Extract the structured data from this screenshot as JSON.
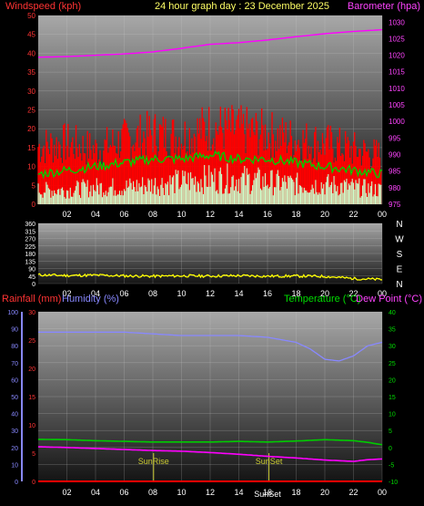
{
  "title": "24 hour graph day : 23 December 2025",
  "colors": {
    "wind": "#ff0000",
    "gust_avg": "#00cc00",
    "wind_light": "#ccffcc",
    "barometer": "#ff00ff",
    "direction": "#ffff00",
    "rain": "#ff0000",
    "humidity": "#8888ff",
    "temperature": "#00cc00",
    "dewpoint": "#ff00ff",
    "sun_marker": "#cccc33"
  },
  "time_ticks": [
    "02",
    "04",
    "06",
    "08",
    "10",
    "12",
    "14",
    "16",
    "18",
    "20",
    "22",
    "00"
  ],
  "chart_data": [
    {
      "type": "line",
      "left_axis_label": "Windspeed (kph)",
      "right_axis_label": "Barometer (hpa)",
      "left_ticks": [
        "0",
        "5",
        "10",
        "15",
        "20",
        "25",
        "30",
        "35",
        "40",
        "45",
        "50"
      ],
      "right_ticks": [
        "975",
        "980",
        "985",
        "990",
        "995",
        "1000",
        "1005",
        "1010",
        "1015",
        "1020",
        "1025",
        "1030"
      ],
      "ylim_left": [
        0,
        50
      ],
      "ylim_right": [
        975,
        1032
      ],
      "series": [
        {
          "name": "Barometer (hpa)",
          "axis": "right",
          "x": [
            0,
            2,
            4,
            6,
            8,
            10,
            12,
            14,
            16,
            18,
            20,
            22,
            24
          ],
          "values": [
            1019.4,
            1019.6,
            1020.0,
            1020.4,
            1021.0,
            1022.1,
            1023.3,
            1023.8,
            1024.6,
            1025.6,
            1026.5,
            1027.2,
            1027.7
          ]
        },
        {
          "name": "Wind gust",
          "axis": "left",
          "x": [
            0,
            2,
            4,
            6,
            8,
            10,
            12,
            14,
            16,
            18,
            20,
            22,
            24
          ],
          "values": [
            18,
            19,
            17,
            20,
            22,
            21,
            24,
            23,
            22,
            20,
            19,
            17,
            15
          ]
        },
        {
          "name": "Average wind",
          "axis": "left",
          "x": [
            0,
            2,
            4,
            6,
            8,
            10,
            12,
            14,
            16,
            18,
            20,
            22,
            24
          ],
          "values": [
            8,
            9,
            10,
            11,
            12,
            12,
            13,
            12,
            12,
            11,
            10,
            9,
            8
          ]
        },
        {
          "name": "Wind speed",
          "axis": "left",
          "x": [
            0,
            2,
            4,
            6,
            8,
            10,
            12,
            14,
            16,
            18,
            20,
            22,
            24
          ],
          "values": [
            5,
            5,
            6,
            6,
            7,
            8,
            9,
            9,
            8,
            7,
            7,
            6,
            5
          ]
        }
      ]
    },
    {
      "type": "line",
      "left_ticks": [
        "0",
        "45",
        "90",
        "135",
        "180",
        "225",
        "270",
        "315",
        "360"
      ],
      "right_ticks": [
        "N",
        "W",
        "S",
        "E",
        "N"
      ],
      "ylim": [
        0,
        360
      ],
      "series": [
        {
          "name": "Wind direction",
          "x": [
            0,
            2,
            4,
            6,
            8,
            10,
            12,
            14,
            16,
            18,
            20,
            22,
            24
          ],
          "values": [
            52,
            48,
            50,
            46,
            44,
            46,
            45,
            47,
            44,
            45,
            43,
            30,
            24
          ]
        }
      ]
    },
    {
      "type": "line",
      "left_label_rain": "Rainfall (mm)",
      "left_label_humidity": "Humidity (%)",
      "right_label_temperature": "Temperature (°C)",
      "right_label_dewpoint": "Dew Point (°C)",
      "humidity_ticks": [
        "0",
        "10",
        "20",
        "30",
        "40",
        "50",
        "60",
        "70",
        "80",
        "90",
        "100"
      ],
      "rain_ticks": [
        "0",
        "5",
        "10",
        "15",
        "20",
        "25",
        "30"
      ],
      "temp_ticks": [
        "-10",
        "-5",
        "0",
        "5",
        "10",
        "15",
        "20",
        "25",
        "30",
        "35",
        "40"
      ],
      "ylim_humidity": [
        0,
        100
      ],
      "ylim_rain": [
        0,
        30
      ],
      "ylim_temp": [
        -10,
        40
      ],
      "series": [
        {
          "name": "Humidity (%)",
          "axis": "humidity",
          "x": [
            0,
            2,
            4,
            6,
            8,
            10,
            12,
            14,
            16,
            18,
            19,
            20,
            21,
            22,
            23,
            24
          ],
          "values": [
            88,
            88,
            88,
            88,
            87,
            86,
            86,
            86,
            85,
            82,
            78,
            72,
            71,
            74,
            80,
            82
          ]
        },
        {
          "name": "Temperature (°C)",
          "axis": "temp",
          "x": [
            0,
            2,
            4,
            6,
            8,
            10,
            12,
            14,
            16,
            18,
            20,
            22,
            23,
            24
          ],
          "values": [
            2.4,
            2.3,
            2.0,
            1.8,
            1.6,
            1.6,
            1.6,
            1.8,
            1.6,
            1.9,
            2.3,
            2.0,
            1.5,
            0.8
          ]
        },
        {
          "name": "Dew Point (°C)",
          "axis": "temp",
          "x": [
            0,
            2,
            4,
            6,
            8,
            10,
            12,
            14,
            16,
            18,
            20,
            22,
            23,
            24
          ],
          "values": [
            0.2,
            0.0,
            -0.3,
            -0.6,
            -0.9,
            -1.1,
            -1.5,
            -2.0,
            -2.6,
            -3.1,
            -3.7,
            -4.1,
            -3.6,
            -3.4
          ]
        },
        {
          "name": "Rainfall (mm)",
          "axis": "rain",
          "x": [
            0,
            24
          ],
          "values": [
            0,
            0
          ]
        }
      ],
      "markers": [
        {
          "label": "SunRise",
          "x": 8.05
        },
        {
          "label": "SunSet",
          "x": 16.1
        }
      ],
      "bottom_label": "SunSet"
    }
  ]
}
